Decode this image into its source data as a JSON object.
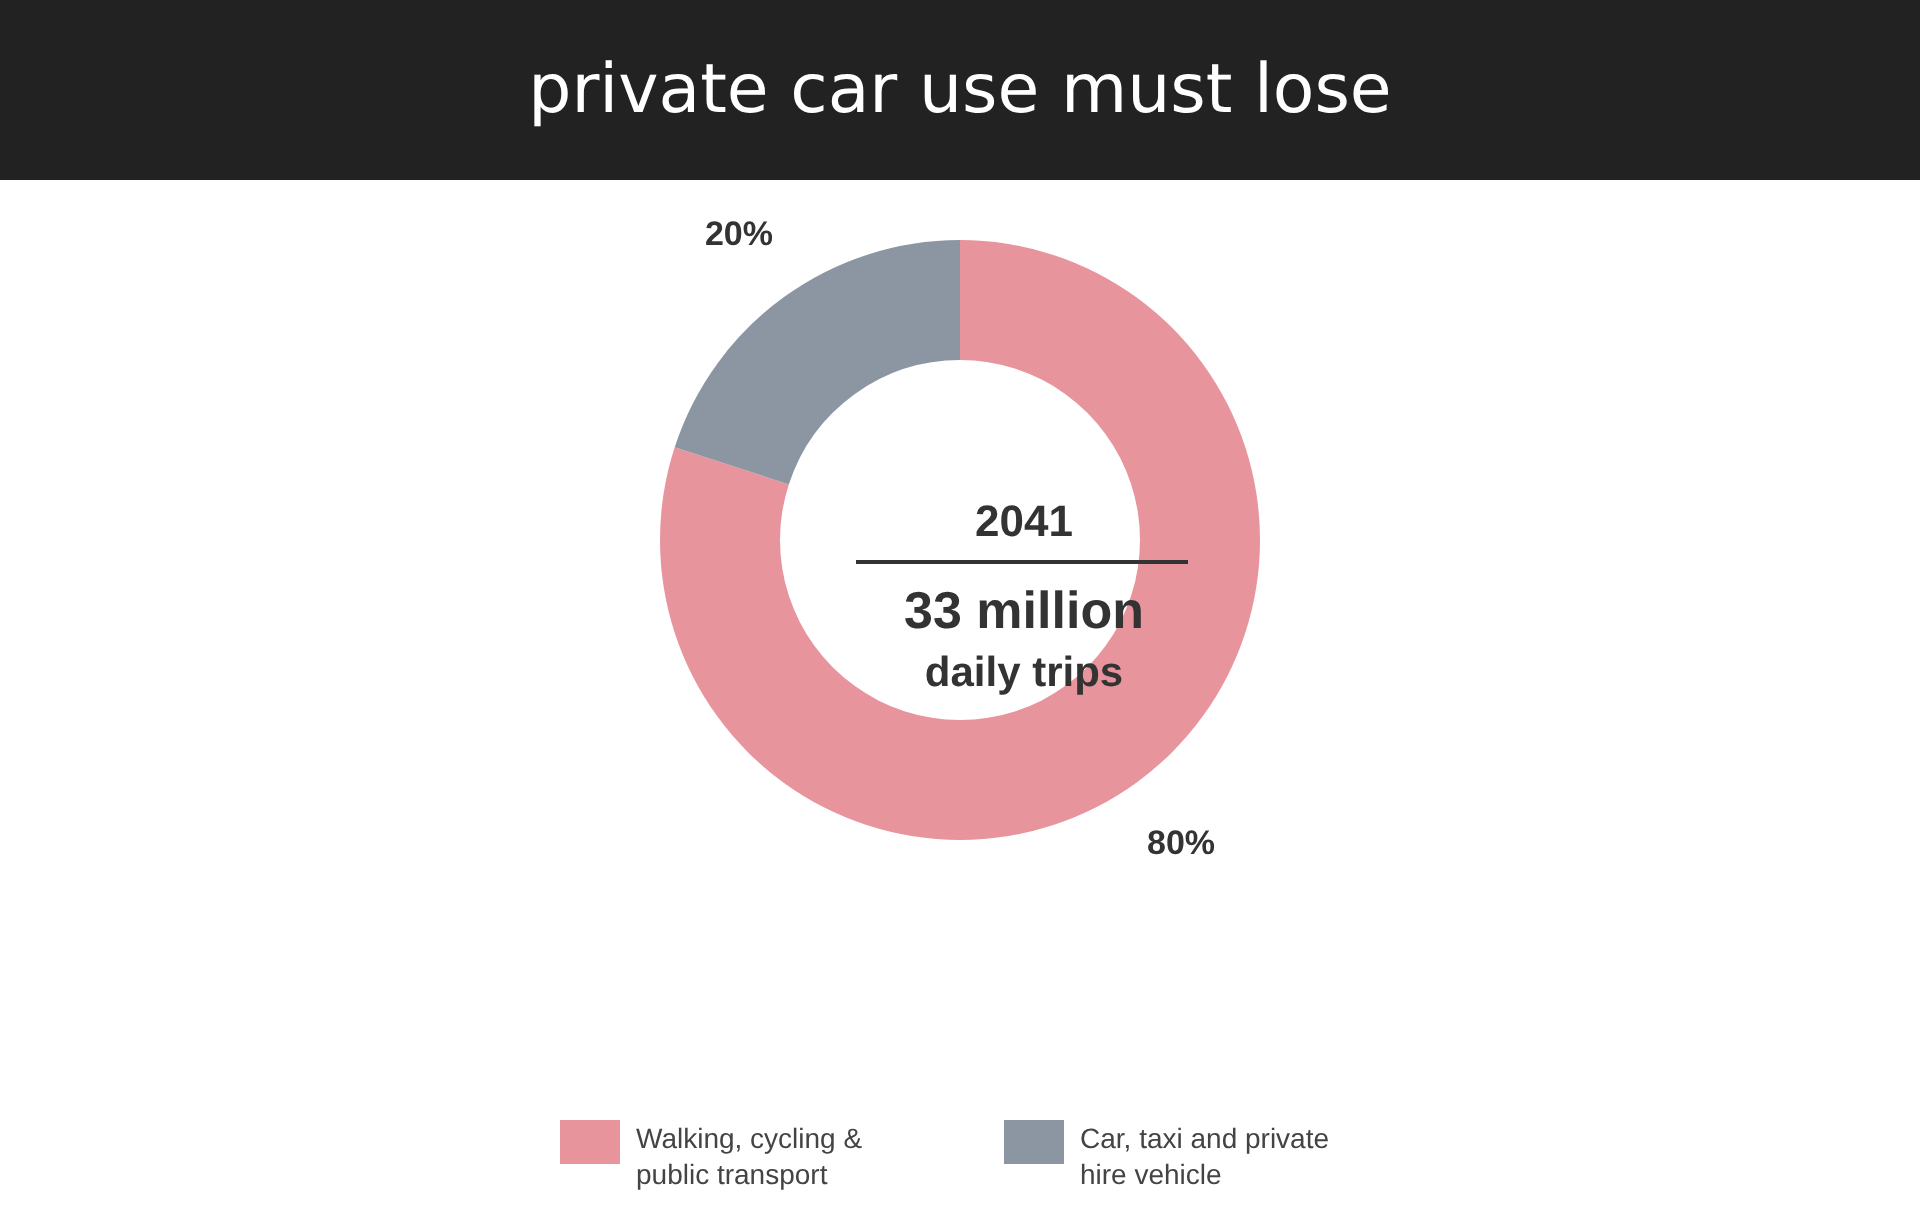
{
  "chart_data": {
    "type": "donut",
    "title": "private car use must lose",
    "categories": [
      "Walking, cycling & public transport",
      "Car, taxi and private hire vehicle"
    ],
    "values": [
      80,
      20
    ],
    "colors": [
      "#e8949c",
      "#8c96a3"
    ],
    "value_labels": [
      "80%",
      "20%"
    ],
    "annotations": [
      "2041",
      "33 million",
      "daily trips"
    ],
    "legend": "bottom"
  }
}
